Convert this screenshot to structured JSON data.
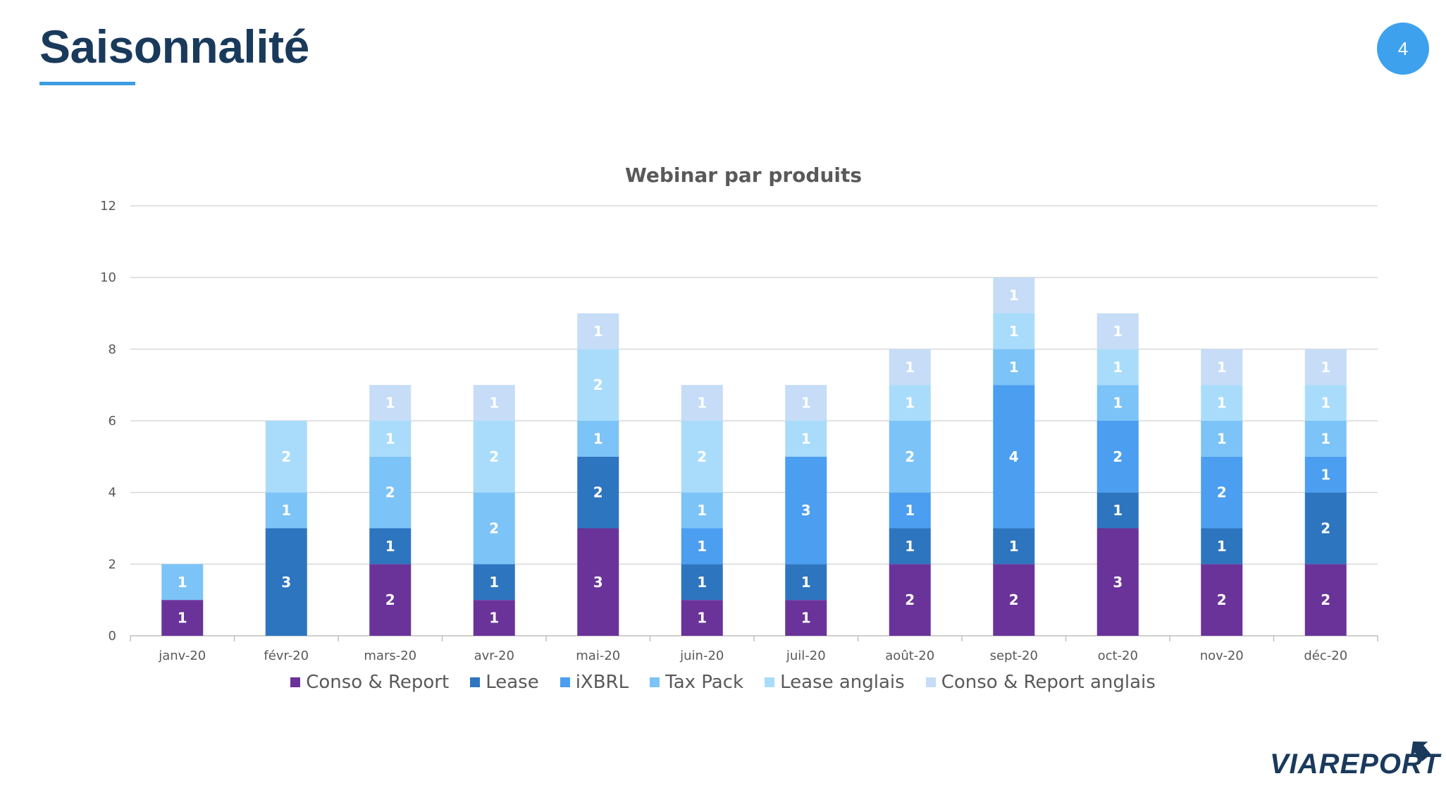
{
  "slide": {
    "title": "Saisonnalité",
    "page_number": "4",
    "logo_text": "VIAREPORT",
    "accent_color": "#3b9de3",
    "title_color": "#1a3a5c"
  },
  "chart_data": {
    "type": "bar",
    "stacked": true,
    "title": "Webinar par produits",
    "xlabel": "",
    "ylabel": "",
    "ylim": [
      0,
      12
    ],
    "yticks": [
      0,
      2,
      4,
      6,
      8,
      10,
      12
    ],
    "grid": true,
    "legend_position": "bottom",
    "categories": [
      "janv-20",
      "févr-20",
      "mars-20",
      "avr-20",
      "mai-20",
      "juin-20",
      "juil-20",
      "août-20",
      "sept-20",
      "oct-20",
      "nov-20",
      "déc-20"
    ],
    "series": [
      {
        "name": "Conso & Report",
        "color": "#6a3399",
        "values": [
          1,
          0,
          2,
          1,
          3,
          1,
          1,
          2,
          2,
          3,
          2,
          2
        ]
      },
      {
        "name": "Lease",
        "color": "#2e75c0",
        "values": [
          0,
          3,
          1,
          1,
          2,
          1,
          1,
          1,
          1,
          1,
          1,
          2
        ]
      },
      {
        "name": "iXBRL",
        "color": "#4b9ef0",
        "values": [
          0,
          0,
          0,
          0,
          0,
          1,
          3,
          1,
          4,
          2,
          2,
          1
        ]
      },
      {
        "name": "Tax Pack",
        "color": "#7cc3f7",
        "values": [
          1,
          1,
          2,
          2,
          1,
          1,
          0,
          2,
          1,
          1,
          1,
          1
        ]
      },
      {
        "name": "Lease anglais",
        "color": "#a9dcfb",
        "values": [
          0,
          2,
          1,
          2,
          2,
          2,
          1,
          1,
          1,
          1,
          1,
          1
        ]
      },
      {
        "name": "Conso & Report anglais",
        "color": "#c6dcf7",
        "values": [
          0,
          0,
          1,
          1,
          1,
          1,
          1,
          1,
          1,
          1,
          1,
          1
        ]
      }
    ]
  }
}
